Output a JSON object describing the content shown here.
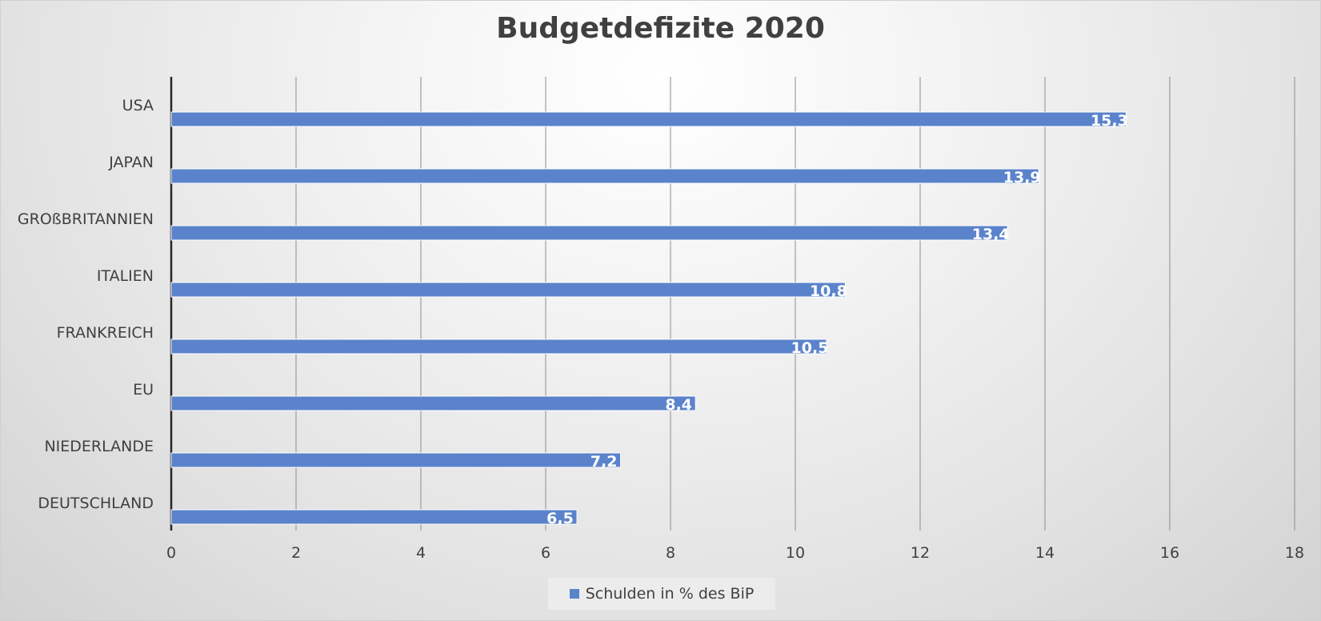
{
  "chart_data": {
    "type": "bar",
    "orientation": "horizontal",
    "title": "Budgetdefizite 2020",
    "categories": [
      "USA",
      "JAPAN",
      "GROßBRITANNIEN",
      "ITALIEN",
      "FRANKREICH",
      "EU",
      "NIEDERLANDE",
      "DEUTSCHLAND"
    ],
    "series": [
      {
        "name": "Schulden in % des BiP",
        "values": [
          15.3,
          13.9,
          13.4,
          10.8,
          10.5,
          8.4,
          7.2,
          6.5
        ],
        "data_labels": [
          "15,3",
          "13,9",
          "13,4",
          "10,8",
          "10,5",
          "8,4",
          "7,2",
          "6,5"
        ],
        "color": "#5b83cb"
      }
    ],
    "xlim": [
      0,
      18
    ],
    "x_ticks": [
      0,
      2,
      4,
      6,
      8,
      10,
      12,
      14,
      16,
      18
    ],
    "grid": true,
    "legend_position": "bottom"
  }
}
